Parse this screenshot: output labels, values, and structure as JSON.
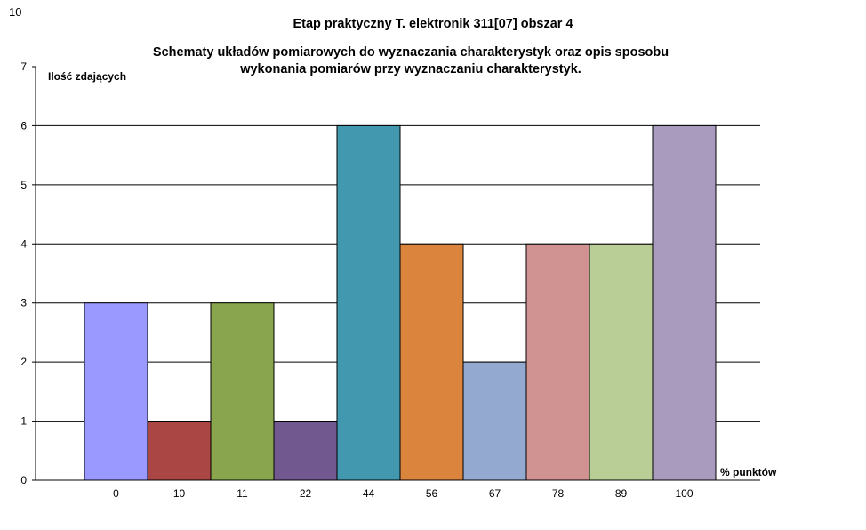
{
  "corner_label": "10",
  "title": "Etap praktyczny T. elektronik 311[07] obszar 4",
  "subtitle_line1": "Schematy układów pomiarowych do wyznaczania charakterystyk oraz opis sposobu",
  "subtitle_line2": "wykonania pomiarów przy wyznaczaniu charakterystyk.",
  "chart_data": {
    "type": "bar",
    "categories": [
      "0",
      "10",
      "11",
      "22",
      "44",
      "56",
      "67",
      "78",
      "89",
      "100"
    ],
    "values": [
      3,
      1,
      3,
      1,
      6,
      4,
      2,
      4,
      4,
      6
    ],
    "colors": [
      "#9999FF",
      "#AA4643",
      "#89A54E",
      "#71588F",
      "#4198AF",
      "#DB843D",
      "#93A9CF",
      "#D19392",
      "#B9CD96",
      "#A99BBD"
    ],
    "ylabel": "Ilość zdających",
    "xlabel": "% punktów",
    "ylim": [
      0,
      7
    ],
    "yticks": [
      "0",
      "1",
      "2",
      "3",
      "4",
      "5",
      "6",
      "7"
    ],
    "grid": true,
    "legend": "none"
  }
}
